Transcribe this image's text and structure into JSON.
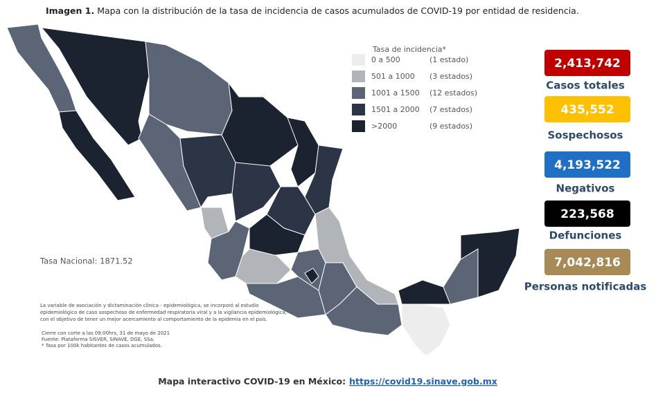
{
  "caption": {
    "label": "Imagen 1.",
    "text": "Mapa con la distribución de la tasa de incidencia de casos acumulados de COVID-19 por entidad de residencia."
  },
  "legend": {
    "title": "Tasa de incidencia*",
    "items": [
      {
        "label": "0 a 500",
        "count": "(1 estado)",
        "color": "#ededee"
      },
      {
        "label": "501 a 1000",
        "count": "(3 estados)",
        "color": "#b1b4b9"
      },
      {
        "label": "1001 a 1500",
        "count": "(12 estados)",
        "color": "#5b6576"
      },
      {
        "label": "1501 a 2000",
        "count": "(7 estados)",
        "color": "#2c3545"
      },
      {
        "label": ">2000",
        "count": "(9 estados)",
        "color": "#1b2230"
      }
    ]
  },
  "national_rate": "Tasa Nacional: 1871.52",
  "notes": [
    "La variable de asociación y dictaminación clínica - epidemiológica, se incorporó al estudio",
    "epidemiológico de caso sospechoso de enfermedad respiratoria viral y a la vigilancia epidemiológica,",
    "con el objetivo de tener un mejor acercamiento al comportamiento de la epidemia en el país.",
    "Cierre con corte a las 09:00hrs, 31 de mayo de 2021",
    "Fuente: Plataforma SISVER, SINAVE, DGE, SSa.",
    "* Tasa por 100k habitantes de casos acumulados."
  ],
  "stats": [
    {
      "value": "2,413,742",
      "label": "Casos totales",
      "color": "#c00000"
    },
    {
      "value": "435,552",
      "label": "Sospechosos",
      "color": "#ffc000"
    },
    {
      "value": "4,193,522",
      "label": "Negativos",
      "color": "#1f6fc5"
    },
    {
      "value": "223,568",
      "label": "Defunciones",
      "color": "#000000"
    },
    {
      "value": "7,042,816",
      "label": "Personas notificadas",
      "color": "#a88a57"
    }
  ],
  "footer": {
    "text": "Mapa interactivo COVID-19 en México:",
    "link": "https://covid19.sinave.gob.mx"
  }
}
